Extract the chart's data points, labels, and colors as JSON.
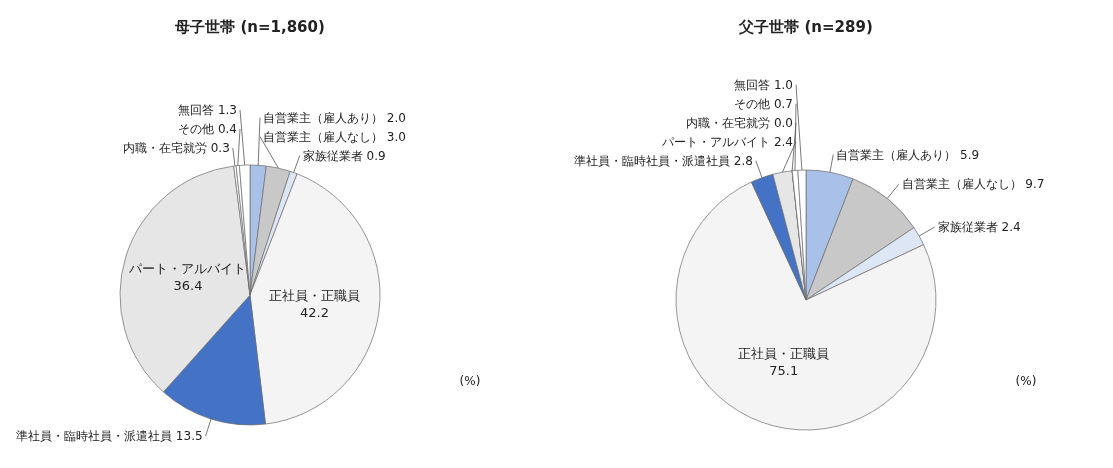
{
  "chart_data": [
    {
      "type": "pie",
      "title": "母子世帯 (n=1,860)",
      "categories": [
        "自営業主（雇人あり）",
        "自営業主（雇人なし）",
        "家族従業者",
        "正社員・正職員",
        "準社員・臨時社員・派遣社員",
        "パート・アルバイト",
        "内職・在宅就労",
        "その他",
        "無回答"
      ],
      "values": [
        2.0,
        3.0,
        0.9,
        42.2,
        13.5,
        36.4,
        0.3,
        0.4,
        1.3
      ],
      "value_labels": [
        "2.0",
        "3.0",
        "0.9",
        "42.2",
        "13.5",
        "36.4",
        "0.3",
        "0.4",
        "1.3"
      ],
      "colors": [
        "#a9c1e8",
        "#c8c8c8",
        "#dce6f4",
        "#f4f4f4",
        "#4472c4",
        "#e6e6e6",
        "#ffffff",
        "#ffffff",
        "#ffffff"
      ],
      "annotations": [
        "(%)"
      ]
    },
    {
      "type": "pie",
      "title": "父子世帯 (n=289)",
      "categories": [
        "自営業主（雇人あり）",
        "自営業主（雇人なし）",
        "家族従業者",
        "正社員・正職員",
        "準社員・臨時社員・派遣社員",
        "パート・アルバイト",
        "内職・在宅就労",
        "その他",
        "無回答"
      ],
      "values": [
        5.9,
        9.7,
        2.4,
        75.1,
        2.8,
        2.4,
        0.0,
        0.7,
        1.0
      ],
      "value_labels": [
        "5.9",
        "9.7",
        "2.4",
        "75.1",
        "2.8",
        "2.4",
        "0.0",
        "0.7",
        "1.0"
      ],
      "colors": [
        "#a9c1e8",
        "#c8c8c8",
        "#dce6f4",
        "#f4f4f4",
        "#4472c4",
        "#e6e6e6",
        "#ffffff",
        "#ffffff",
        "#ffffff"
      ],
      "annotations": [
        "(%)"
      ]
    }
  ]
}
